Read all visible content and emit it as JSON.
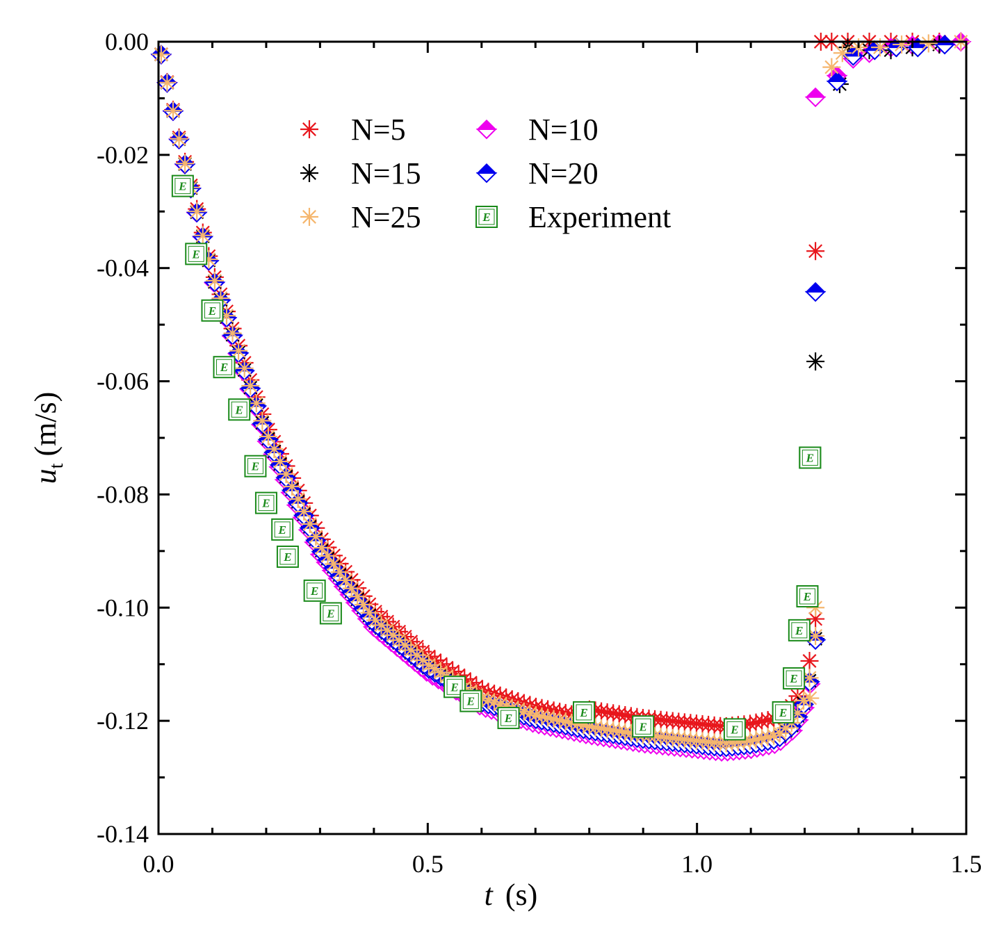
{
  "chart_data": {
    "type": "scatter",
    "title": "",
    "xlabel": "t",
    "xlabel_unit": "(s)",
    "ylabel": "u",
    "ylabel_sub": "t",
    "ylabel_unit": "(m/s)",
    "xlim": [
      0.0,
      1.5
    ],
    "ylim": [
      -0.14,
      0.0
    ],
    "xticks": [
      0.0,
      0.5,
      1.0,
      1.5
    ],
    "xtick_labels": [
      "0.0",
      "0.5",
      "1.0",
      "1.5"
    ],
    "yticks": [
      0.0,
      -0.02,
      -0.04,
      -0.06,
      -0.08,
      -0.1,
      -0.12,
      -0.14
    ],
    "ytick_labels": [
      "0.00",
      "-0.02",
      "-0.04",
      "-0.06",
      "-0.08",
      "-0.10",
      "-0.12",
      "-0.14"
    ],
    "grid": false,
    "legend_position": "upper-center",
    "series": [
      {
        "name": "N=5",
        "marker": "asterisk",
        "color": "#e8161c",
        "x_end": 1.22,
        "spike": [
          [
            1.22,
            -0.037
          ]
        ],
        "offset": 0.0015,
        "late": [
          [
            1.23,
            0.0
          ],
          [
            1.25,
            0.0
          ],
          [
            1.28,
            0.0
          ],
          [
            1.32,
            0.0
          ],
          [
            1.36,
            0.0
          ],
          [
            1.4,
            0.0
          ],
          [
            1.45,
            0.0
          ]
        ]
      },
      {
        "name": "N=10",
        "marker": "diamond",
        "color": "#ee00ee",
        "x_end": 1.21,
        "spike": [
          [
            1.22,
            -0.0098
          ]
        ],
        "offset": -0.0015,
        "late": [
          [
            1.26,
            -0.006
          ],
          [
            1.29,
            -0.003
          ],
          [
            1.32,
            -0.002
          ],
          [
            1.36,
            -0.001
          ],
          [
            1.4,
            -0.0006
          ],
          [
            1.45,
            -0.0003
          ],
          [
            1.49,
            0.0
          ]
        ]
      },
      {
        "name": "N=15",
        "marker": "asterisk",
        "color": "#000000",
        "x_end": 1.22,
        "spike": [
          [
            1.22,
            -0.0565
          ]
        ],
        "offset": -0.0005,
        "late": [
          [
            1.265,
            -0.0075
          ],
          [
            1.28,
            -0.001
          ],
          [
            1.32,
            -0.0015
          ],
          [
            1.36,
            -0.0015
          ],
          [
            1.4,
            -0.001
          ],
          [
            1.45,
            -0.0005
          ]
        ]
      },
      {
        "name": "N=20",
        "marker": "diamond",
        "color": "#0000ee",
        "x_end": 1.22,
        "spike": [
          [
            1.22,
            -0.0442
          ]
        ],
        "offset": -0.0007,
        "late": [
          [
            1.26,
            -0.007
          ],
          [
            1.29,
            -0.0025
          ],
          [
            1.33,
            -0.0015
          ],
          [
            1.37,
            -0.001
          ],
          [
            1.41,
            -0.001
          ],
          [
            1.46,
            -0.0005
          ]
        ]
      },
      {
        "name": "N=25",
        "marker": "asterisk",
        "color": "#f5b66e",
        "x_end": 1.22,
        "spike": [
          [
            1.22,
            -0.1
          ],
          [
            1.21,
            -0.116
          ]
        ],
        "offset": 0.0,
        "late": [
          [
            1.25,
            -0.0045
          ],
          [
            1.27,
            -0.002
          ],
          [
            1.3,
            -0.001
          ],
          [
            1.34,
            -0.001
          ],
          [
            1.38,
            -0.0005
          ],
          [
            1.43,
            -0.0003
          ],
          [
            1.49,
            0.0
          ]
        ]
      },
      {
        "name": "Experiment",
        "marker": "square-E",
        "color": "#1a8a1a",
        "x": [
          0.045,
          0.07,
          0.1,
          0.122,
          0.15,
          0.18,
          0.2,
          0.23,
          0.24,
          0.29,
          0.32,
          0.55,
          0.58,
          0.65,
          0.79,
          0.9,
          1.07,
          1.16,
          1.18,
          1.19,
          1.205,
          1.21,
          1.21
        ],
        "y": [
          -0.0255,
          -0.0375,
          -0.0475,
          -0.0575,
          -0.065,
          -0.075,
          -0.0815,
          -0.0862,
          -0.091,
          -0.097,
          -0.101,
          -0.114,
          -0.1165,
          -0.1195,
          -0.1185,
          -0.121,
          -0.1215,
          -0.1185,
          -0.1125,
          -0.104,
          -0.098,
          -0.0735,
          -0.0735
        ]
      }
    ]
  },
  "legend": {
    "entries": [
      "N=5",
      "N=10",
      "N=15",
      "N=20",
      "N=25",
      "Experiment"
    ],
    "marker_letter": "E"
  }
}
